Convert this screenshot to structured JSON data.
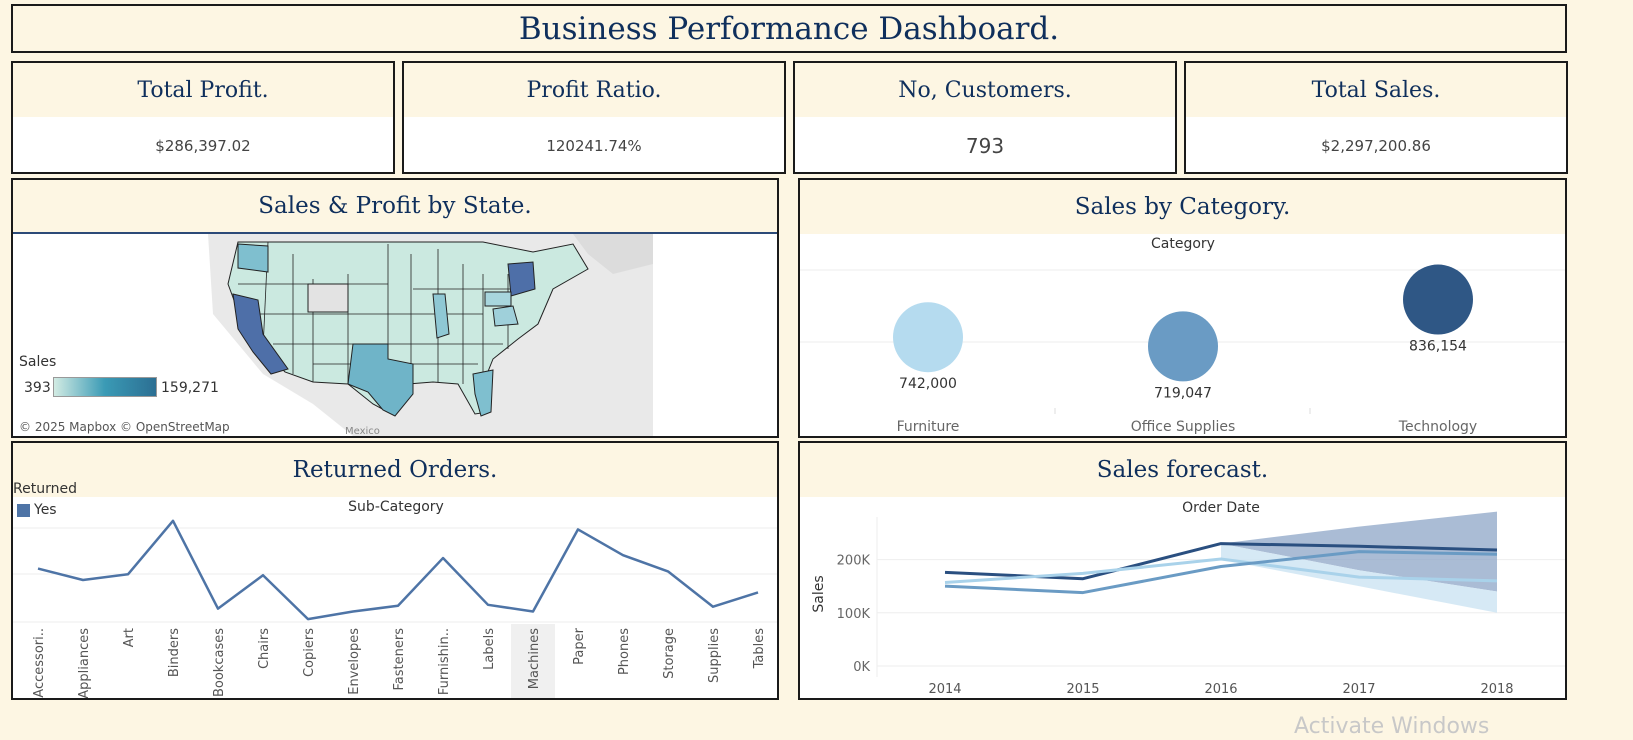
{
  "dashboard": {
    "title": "Business Performance Dashboard."
  },
  "kpis": [
    {
      "title": "Total Profit.",
      "value": "$286,397.02"
    },
    {
      "title": "Profit Ratio.",
      "value": "120241.74%"
    },
    {
      "title": "No, Customers.",
      "value": "793"
    },
    {
      "title": "Total Sales.",
      "value": "$2,297,200.86"
    }
  ],
  "map_panel": {
    "title": "Sales & Profit by State.",
    "legend_title": "Sales",
    "legend_min": "393",
    "legend_max": "159,271",
    "attribution": "© 2025 Mapbox © OpenStreetMap",
    "country_label": "Mexico",
    "colors": {
      "low": "#d2ebe3",
      "mid": "#3a9ab5",
      "high": "#4e6fa8"
    }
  },
  "category_panel": {
    "title": "Sales by Category.",
    "header": "Category"
  },
  "returned_panel": {
    "title": "Returned Orders.",
    "legend_title": "Returned",
    "legend_item": "Yes",
    "header": "Sub-Category"
  },
  "forecast_panel": {
    "title": "Sales forecast.",
    "header": "Order Date",
    "ylabel": "Sales"
  },
  "watermark": "Activate Windows",
  "chart_data": [
    {
      "type": "scatter",
      "title": "Sales by Category.",
      "xlabel": "Category",
      "categories": [
        "Furniture",
        "Office Supplies",
        "Technology"
      ],
      "values": [
        742000,
        719047,
        836154
      ],
      "labels": [
        "742,000",
        "719,047",
        "836,154"
      ],
      "colors": [
        "#b5dbef",
        "#6a9bc4",
        "#2f5785"
      ]
    },
    {
      "type": "line",
      "title": "Returned Orders.",
      "xlabel": "Sub-Category",
      "categories": [
        "Accessori..",
        "Appliances",
        "Art",
        "Binders",
        "Bookcases",
        "Chairs",
        "Copiers",
        "Envelopes",
        "Fasteners",
        "Furnishin..",
        "Labels",
        "Machines",
        "Paper",
        "Phones",
        "Storage",
        "Supplies",
        "Tables"
      ],
      "series": [
        {
          "name": "Yes",
          "values": [
            56,
            44,
            50,
            106,
            14,
            49,
            3,
            11,
            17,
            67,
            18,
            11,
            97,
            70,
            53,
            16,
            31
          ]
        }
      ],
      "color": "#4e74a6",
      "highlight": "Machines"
    },
    {
      "type": "line",
      "title": "Sales forecast.",
      "xlabel": "Order Date",
      "ylabel": "Sales",
      "x": [
        2014,
        2015,
        2016,
        2017,
        2018
      ],
      "yticks": [
        "0K",
        "100K",
        "200K"
      ],
      "ylim": [
        0,
        280000
      ],
      "series": [
        {
          "values": [
            176000,
            164000,
            230000,
            225000,
            218000
          ],
          "color": "#2a4f80"
        },
        {
          "values": [
            157000,
            174000,
            201000,
            167000,
            160000
          ],
          "color": "#a9d2ea"
        },
        {
          "values": [
            150000,
            138000,
            187000,
            215000,
            210000
          ],
          "color": "#6a9bc4"
        }
      ],
      "forecast_band": {
        "upper": [
          230000,
          262000,
          290000
        ],
        "lower": [
          230000,
          180000,
          140000
        ],
        "lower_light": [
          200000,
          150000,
          100000
        ]
      }
    }
  ]
}
